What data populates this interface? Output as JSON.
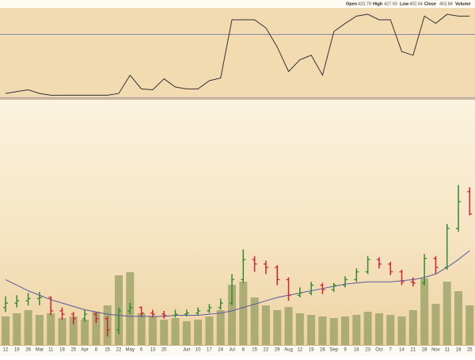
{
  "chart_data": {
    "type": "ohlc",
    "header_labels": [
      "Open",
      "High",
      "Low",
      "Close",
      "Volume"
    ],
    "categories": [
      "12",
      "19",
      "26",
      "Mar",
      "11",
      "18",
      "25",
      "Apr",
      "8",
      "15",
      "22",
      "May",
      "6",
      "13",
      "20",
      null,
      "Jun",
      "10",
      "17",
      "24",
      "Jul",
      "8",
      "15",
      "22",
      "29",
      "Aug",
      "12",
      "19",
      "26",
      "Sep",
      "9",
      "16",
      "23",
      "Oct",
      "7",
      "14",
      "21",
      "28",
      "Nov",
      "11",
      "18",
      "25"
    ],
    "open": [
      320,
      324,
      326,
      328,
      329,
      317,
      314,
      310,
      314,
      310,
      300,
      317,
      320,
      315,
      314,
      313,
      314,
      315,
      317,
      320,
      324,
      345,
      363,
      359,
      356,
      345,
      331,
      333,
      340,
      336,
      340,
      345,
      352,
      363,
      359,
      352,
      343,
      342,
      364,
      356,
      391,
      423.79
    ],
    "high": [
      330,
      331,
      333,
      334,
      330,
      320,
      316,
      318,
      316,
      312,
      320,
      324,
      321,
      318,
      317,
      318,
      318,
      320,
      323,
      328,
      350,
      372,
      366,
      362,
      358,
      347,
      338,
      343,
      342,
      342,
      348,
      355,
      366,
      365,
      361,
      354,
      347,
      368,
      366,
      395,
      430,
      427.93
    ],
    "low": [
      316,
      320,
      322,
      322,
      313,
      309,
      305,
      307,
      306,
      294,
      296,
      314,
      312,
      311,
      310,
      311,
      312,
      313,
      315,
      318,
      322,
      342,
      352,
      350,
      340,
      326,
      329,
      331,
      332,
      334,
      338,
      343,
      350,
      355,
      349,
      340,
      339,
      340,
      350,
      354,
      388,
      402.64
    ],
    "close": [
      324,
      326,
      328,
      329,
      317,
      314,
      310,
      314,
      310,
      300,
      317,
      320,
      315,
      314,
      313,
      314,
      315,
      317,
      320,
      324,
      345,
      363,
      359,
      356,
      345,
      331,
      333,
      340,
      336,
      340,
      345,
      352,
      363,
      359,
      352,
      343,
      342,
      364,
      356,
      391,
      415,
      403.84
    ],
    "ylim": [
      280,
      505
    ],
    "up_color": "#2e8b2e",
    "down_color": "#cc2233",
    "ma": {
      "color": "#5a5aa0",
      "values": [
        345,
        340,
        335,
        331,
        327,
        324,
        321,
        318,
        316,
        314,
        313,
        312,
        312,
        312,
        312,
        313,
        313,
        313,
        314,
        315,
        317,
        320,
        323,
        326,
        329,
        331,
        333,
        335,
        337,
        339,
        341,
        342,
        343,
        343,
        343,
        344,
        345,
        347,
        350,
        356,
        363,
        371
      ]
    },
    "volume": {
      "color": "#8f9a5e",
      "ylim": [
        0,
        100
      ],
      "values": [
        18,
        20,
        22,
        19,
        20,
        17,
        18,
        16,
        21,
        25,
        44,
        46,
        20,
        18,
        16,
        17,
        15,
        16,
        18,
        22,
        38,
        40,
        30,
        25,
        22,
        24,
        20,
        19,
        18,
        17,
        18,
        19,
        21,
        20,
        19,
        18,
        22,
        42,
        26,
        40,
        34,
        25
      ]
    },
    "indicator": {
      "color": "#333333",
      "line_color": "#6a6aa8",
      "ylim": [
        0,
        100
      ],
      "lines": [
        71,
        1
      ],
      "values": [
        6,
        8,
        10,
        6,
        4,
        4,
        4,
        4,
        4,
        4,
        6,
        26,
        11,
        10,
        22,
        13,
        11,
        11,
        20,
        23,
        87,
        87,
        87,
        78,
        57,
        30,
        43,
        48,
        26,
        74,
        83,
        91,
        93,
        87,
        87,
        52,
        48,
        91,
        83,
        93,
        91,
        91
      ]
    }
  }
}
